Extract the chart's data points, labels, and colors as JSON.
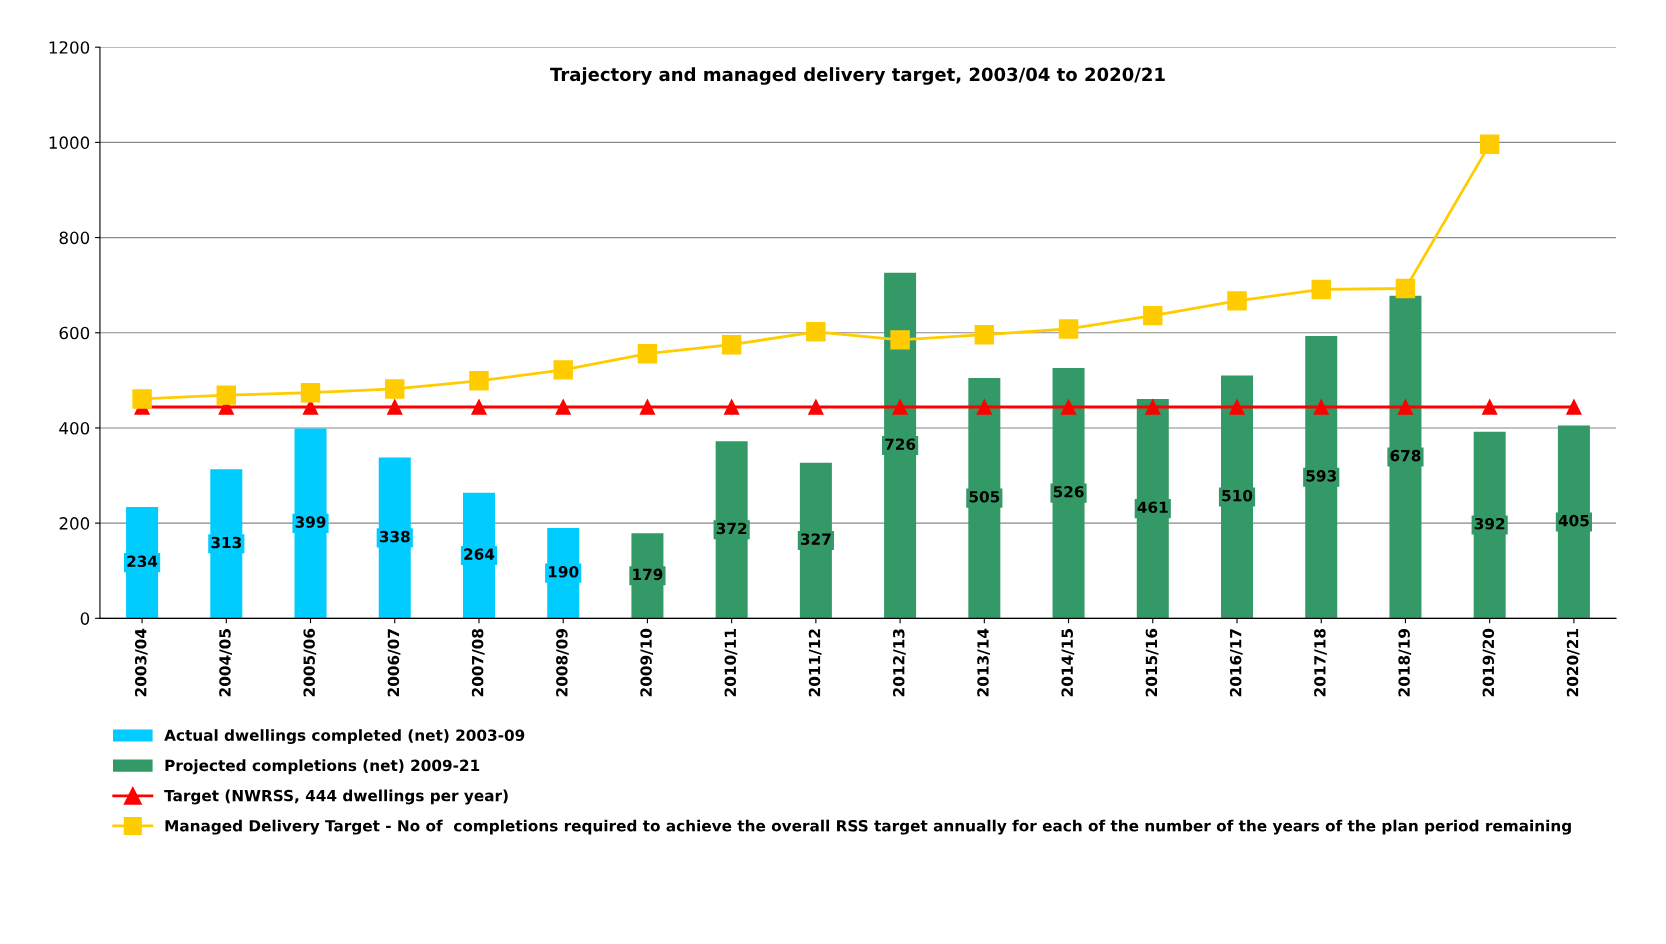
{
  "chart_data": {
    "type": "bar",
    "title": "Trajectory and managed delivery target, 2003/04 to 2020/21",
    "categories": [
      "2003/04",
      "2004/05",
      "2005/06",
      "2006/07",
      "2007/08",
      "2008/09",
      "2009/10",
      "2010/11",
      "2011/12",
      "2012/13",
      "2013/14",
      "2014/15",
      "2015/16",
      "2016/17",
      "2017/18",
      "2018/19",
      "2019/20",
      "2020/21"
    ],
    "series": [
      {
        "name": "Actual dwellings completed (net) 2003-09",
        "color": "#00ccff",
        "values": [
          234,
          313,
          399,
          338,
          264,
          190,
          null,
          null,
          null,
          null,
          null,
          null,
          null,
          null,
          null,
          null,
          null,
          null
        ],
        "value_labels": [
          "234",
          "313",
          "399",
          "338",
          "264",
          "190",
          null,
          null,
          null,
          null,
          null,
          null,
          null,
          null,
          null,
          null,
          null,
          null
        ]
      },
      {
        "name": "Projected completions (net) 2009-21",
        "color": "#339966",
        "values": [
          null,
          null,
          null,
          null,
          null,
          null,
          179,
          372,
          327,
          726,
          505,
          526,
          461,
          510,
          593,
          678,
          392,
          405
        ],
        "value_labels": [
          null,
          null,
          null,
          null,
          null,
          null,
          "179",
          "372",
          "327",
          "726",
          "505",
          "526",
          "461",
          "510",
          "593",
          "678",
          "392",
          "405"
        ]
      },
      {
        "name": "Target (NWRSS, 444 dwellings per year)",
        "type": "line",
        "color": "#ff0000",
        "marker": "triangle",
        "values": [
          444,
          444,
          444,
          444,
          444,
          444,
          444,
          444,
          444,
          444,
          444,
          444,
          444,
          444,
          444,
          444,
          444,
          444
        ]
      },
      {
        "name": "Managed Delivery Target - No of  completions required to achieve the overall RSS target annually for each of the number of the years of the plan period remaining",
        "type": "line",
        "color": "#ffcc00",
        "marker": "square",
        "values": [
          461,
          469,
          474,
          482,
          499,
          522,
          556,
          575,
          602,
          585,
          596,
          608,
          636,
          667,
          691,
          693,
          996,
          null
        ]
      }
    ],
    "ylim": [
      0,
      1200
    ],
    "yticks": [
      0,
      200,
      400,
      600,
      800,
      1000,
      1200
    ],
    "grid": "y",
    "legend": "bottom"
  }
}
